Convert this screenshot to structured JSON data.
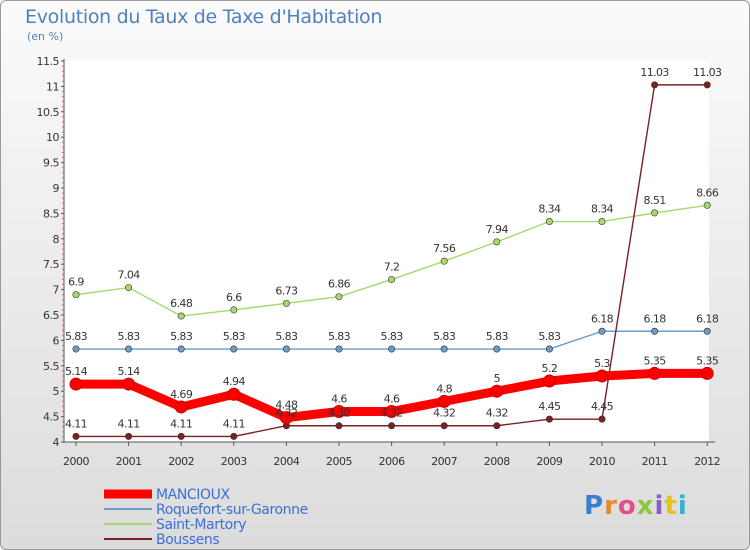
{
  "title": "Evolution du Taux de Taxe d'Habitation",
  "subtitle": "(en %)",
  "brand": "Proxiti",
  "chart_data": {
    "type": "line",
    "title": "Evolution du Taux de Taxe d'Habitation",
    "subtitle": "(en %)",
    "x": [
      "2000",
      "2001",
      "2002",
      "2003",
      "2004",
      "2005",
      "2006",
      "2007",
      "2008",
      "2009",
      "2010",
      "2011",
      "2012"
    ],
    "ylim": [
      4,
      11.5
    ],
    "yticks": [
      "4",
      "4.5",
      "5",
      "5.5",
      "6",
      "6.5",
      "7",
      "7.5",
      "8",
      "8.5",
      "9",
      "9.5",
      "10",
      "10.5",
      "11",
      "11.5"
    ],
    "grid": false,
    "legend_position": "bottom-left",
    "series": [
      {
        "name": "MANCIOUX",
        "color": "#ff0000",
        "values": [
          5.14,
          5.14,
          4.69,
          4.94,
          4.48,
          4.6,
          4.6,
          4.8,
          5.0,
          5.2,
          5.3,
          5.35,
          5.35
        ],
        "labels": [
          "5.14",
          "5.14",
          "4.69",
          "4.94",
          "4.48",
          "4.6",
          "4.6",
          "4.8",
          "5",
          "5.2",
          "5.3",
          "5.35",
          "5.35"
        ]
      },
      {
        "name": "Roquefort-sur-Garonne",
        "color": "#6b9bc7",
        "values": [
          5.83,
          5.83,
          5.83,
          5.83,
          5.83,
          5.83,
          5.83,
          5.83,
          5.83,
          5.83,
          6.18,
          6.18,
          6.18
        ],
        "labels": [
          "5.83",
          "5.83",
          "5.83",
          "5.83",
          "5.83",
          "5.83",
          "5.83",
          "5.83",
          "5.83",
          "5.83",
          "6.18",
          "6.18",
          "6.18"
        ]
      },
      {
        "name": "Saint-Martory",
        "color": "#a6d96a",
        "values": [
          6.9,
          7.04,
          6.48,
          6.6,
          6.73,
          6.86,
          7.2,
          7.56,
          7.94,
          8.34,
          8.34,
          8.51,
          8.66
        ],
        "labels": [
          "6.9",
          "7.04",
          "6.48",
          "6.6",
          "6.73",
          "6.86",
          "7.2",
          "7.56",
          "7.94",
          "8.34",
          "8.34",
          "8.51",
          "8.66"
        ]
      },
      {
        "name": "Boussens",
        "color": "#7b2121",
        "values": [
          4.11,
          4.11,
          4.11,
          4.11,
          4.32,
          4.32,
          4.32,
          4.32,
          4.32,
          4.45,
          4.45,
          11.03,
          11.03
        ],
        "labels": [
          "4.11",
          "4.11",
          "4.11",
          "4.11",
          "4.32",
          "4.32",
          "4.32",
          "4.32",
          "4.32",
          "4.45",
          "4.45",
          "11.03",
          "11.03"
        ]
      }
    ]
  }
}
